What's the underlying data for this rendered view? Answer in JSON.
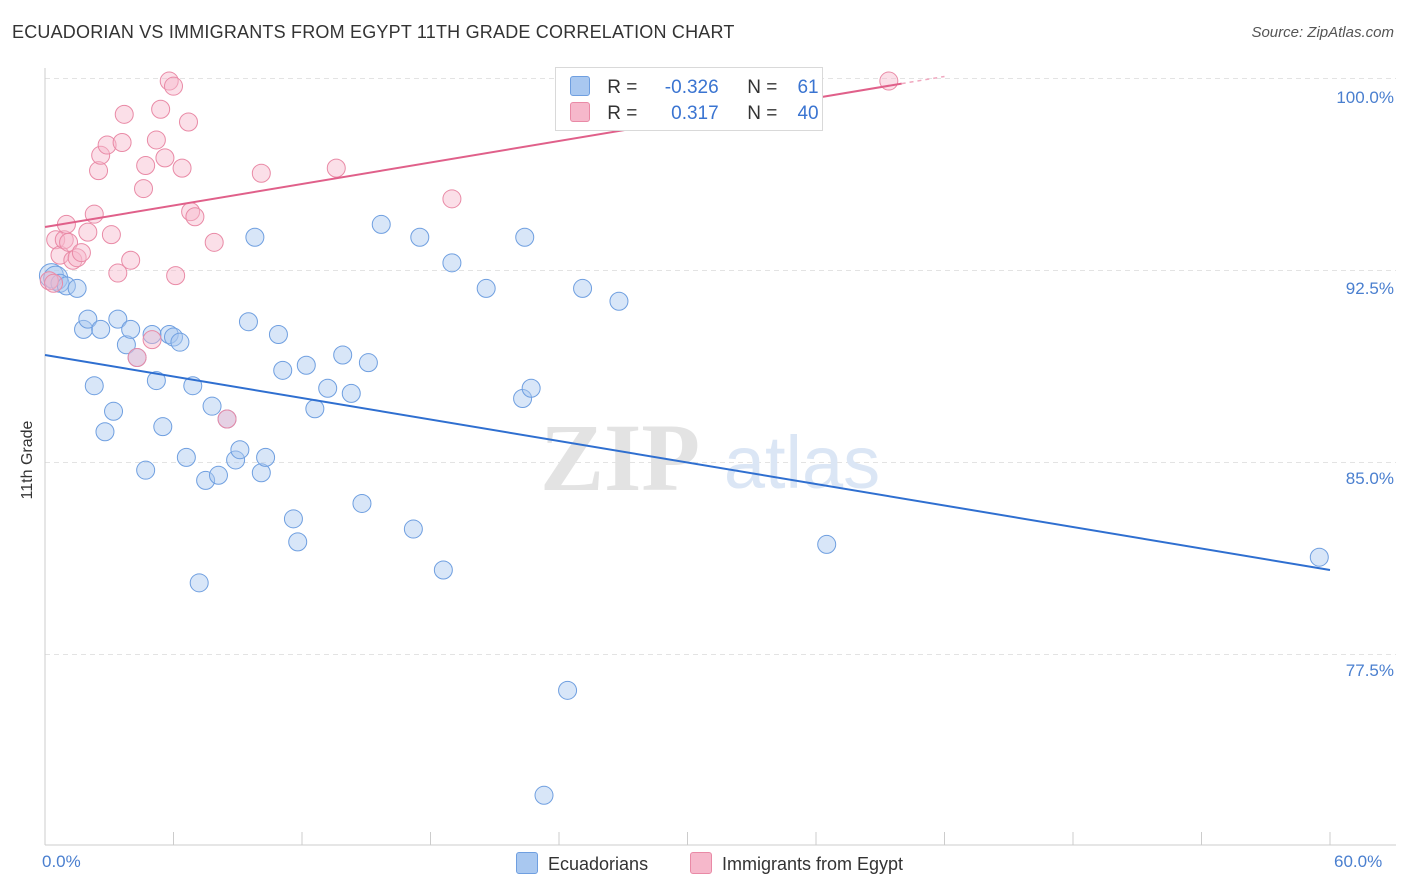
{
  "header": {
    "title": "ECUADORIAN VS IMMIGRANTS FROM EGYPT 11TH GRADE CORRELATION CHART",
    "source": "Source: ZipAtlas.com"
  },
  "watermark": {
    "zip": "ZIP",
    "atlas": "atlas"
  },
  "legend_top": {
    "rows": [
      {
        "r_label": "R =",
        "r_value": "-0.326",
        "n_label": "N =",
        "n_value": "61",
        "color": "#a9c8f0"
      },
      {
        "r_label": "R =",
        "r_value": "0.317",
        "n_label": "N =",
        "n_value": "40",
        "color": "#f6b8cb"
      }
    ]
  },
  "legend_bottom": {
    "items": [
      {
        "label": "Ecuadorians",
        "color": "#a9c8f0"
      },
      {
        "label": "Immigrants from Egypt",
        "color": "#f6b8cb"
      }
    ]
  },
  "colors": {
    "blue_fill": "#a9c8f0",
    "blue_stroke": "#6f9fe0",
    "blue_line": "#2f6fd0",
    "pink_fill": "#f6b8cb",
    "pink_stroke": "#e98aa6",
    "pink_line": "#e0608a",
    "grid": "#e3e3e3",
    "tick_text": "#4a7fcf"
  },
  "chart_data": {
    "type": "scatter",
    "title": "ECUADORIAN VS IMMIGRANTS FROM EGYPT 11TH GRADE CORRELATION CHART",
    "xlabel": "",
    "ylabel": "11th Grade",
    "xlim": [
      0,
      60
    ],
    "ylim": [
      71.5,
      101.5
    ],
    "x_tick_labels": [
      "0.0%",
      "60.0%"
    ],
    "y_ticks": [
      {
        "value": 100.0,
        "label": "100.0%"
      },
      {
        "value": 92.5,
        "label": "92.5%"
      },
      {
        "value": 85.0,
        "label": "85.0%"
      },
      {
        "value": 77.5,
        "label": "77.5%"
      }
    ],
    "grid": true,
    "series": [
      {
        "name": "Ecuadorians",
        "trend": {
          "x": [
            0,
            60
          ],
          "y": [
            89.2,
            80.8
          ]
        },
        "points": [
          [
            0.3,
            92.3
          ],
          [
            0.5,
            92.2
          ],
          [
            0.7,
            92.0
          ],
          [
            1.0,
            91.9
          ],
          [
            1.5,
            91.8
          ],
          [
            1.8,
            90.2
          ],
          [
            2.0,
            90.6
          ],
          [
            2.3,
            88.0
          ],
          [
            2.6,
            90.2
          ],
          [
            2.8,
            86.2
          ],
          [
            3.2,
            87.0
          ],
          [
            3.4,
            90.6
          ],
          [
            3.8,
            89.6
          ],
          [
            4.0,
            90.2
          ],
          [
            4.3,
            89.1
          ],
          [
            4.7,
            84.7
          ],
          [
            5.0,
            90.0
          ],
          [
            5.2,
            88.2
          ],
          [
            5.5,
            86.4
          ],
          [
            5.8,
            90.0
          ],
          [
            6.0,
            89.9
          ],
          [
            6.3,
            89.7
          ],
          [
            6.6,
            85.2
          ],
          [
            6.9,
            88.0
          ],
          [
            7.2,
            80.3
          ],
          [
            7.5,
            84.3
          ],
          [
            7.8,
            87.2
          ],
          [
            8.1,
            84.5
          ],
          [
            8.5,
            86.7
          ],
          [
            8.9,
            85.1
          ],
          [
            9.1,
            85.5
          ],
          [
            9.5,
            90.5
          ],
          [
            9.8,
            93.8
          ],
          [
            10.1,
            84.6
          ],
          [
            10.3,
            85.2
          ],
          [
            10.9,
            90.0
          ],
          [
            11.1,
            88.6
          ],
          [
            11.6,
            82.8
          ],
          [
            11.8,
            81.9
          ],
          [
            12.2,
            88.8
          ],
          [
            12.6,
            87.1
          ],
          [
            13.2,
            87.9
          ],
          [
            13.9,
            89.2
          ],
          [
            14.3,
            87.7
          ],
          [
            14.8,
            83.4
          ],
          [
            15.1,
            88.9
          ],
          [
            15.7,
            94.3
          ],
          [
            17.2,
            82.4
          ],
          [
            17.5,
            93.8
          ],
          [
            18.6,
            80.8
          ],
          [
            19.0,
            92.8
          ],
          [
            20.6,
            91.8
          ],
          [
            22.3,
            87.5
          ],
          [
            22.4,
            93.8
          ],
          [
            22.7,
            87.9
          ],
          [
            23.3,
            72.0
          ],
          [
            24.4,
            76.1
          ],
          [
            25.1,
            91.8
          ],
          [
            26.8,
            91.3
          ],
          [
            36.5,
            81.8
          ],
          [
            59.5,
            81.3
          ]
        ]
      },
      {
        "name": "Immigrants from Egypt",
        "trend": {
          "x": [
            0,
            40
          ],
          "y": [
            94.2,
            99.8
          ]
        },
        "points": [
          [
            0.2,
            92.1
          ],
          [
            0.4,
            92.0
          ],
          [
            0.5,
            93.7
          ],
          [
            0.7,
            93.1
          ],
          [
            0.9,
            93.7
          ],
          [
            1.0,
            94.3
          ],
          [
            1.1,
            93.6
          ],
          [
            1.3,
            92.9
          ],
          [
            1.5,
            93.0
          ],
          [
            1.7,
            93.2
          ],
          [
            2.0,
            94.0
          ],
          [
            2.3,
            94.7
          ],
          [
            2.5,
            96.4
          ],
          [
            2.6,
            97.0
          ],
          [
            2.9,
            97.4
          ],
          [
            3.1,
            93.9
          ],
          [
            3.4,
            92.4
          ],
          [
            3.6,
            97.5
          ],
          [
            3.7,
            98.6
          ],
          [
            4.0,
            92.9
          ],
          [
            4.3,
            89.1
          ],
          [
            4.6,
            95.7
          ],
          [
            4.7,
            96.6
          ],
          [
            5.0,
            89.8
          ],
          [
            5.2,
            97.6
          ],
          [
            5.4,
            98.8
          ],
          [
            5.6,
            96.9
          ],
          [
            5.8,
            99.9
          ],
          [
            6.0,
            99.7
          ],
          [
            6.1,
            92.3
          ],
          [
            6.4,
            96.5
          ],
          [
            6.7,
            98.3
          ],
          [
            6.8,
            94.8
          ],
          [
            7.0,
            94.6
          ],
          [
            7.9,
            93.6
          ],
          [
            8.5,
            86.7
          ],
          [
            10.1,
            96.3
          ],
          [
            13.6,
            96.5
          ],
          [
            19.0,
            95.3
          ],
          [
            39.4,
            99.9
          ]
        ]
      }
    ]
  }
}
